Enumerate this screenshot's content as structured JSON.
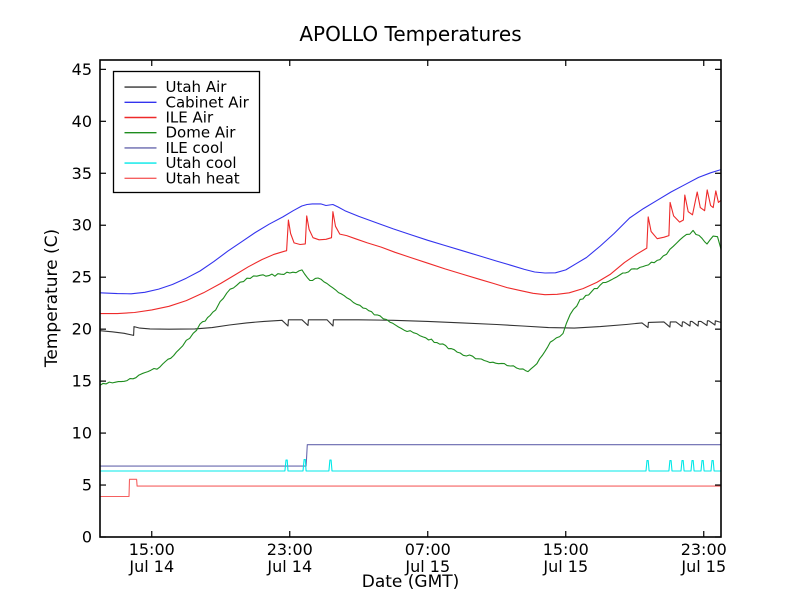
{
  "figure": {
    "title": "APOLLO Temperatures"
  },
  "chart_data": {
    "type": "line",
    "title": "APOLLO Temperatures",
    "xlabel": "Date (GMT)",
    "ylabel": "Temperature (C)",
    "xlim": [
      0,
      36
    ],
    "ylim": [
      0,
      45.9
    ],
    "x_unit": "hours (t=0 at left edge, ticks show GMT clock time)",
    "grid": false,
    "legend_position": "upper left",
    "background": "#ffffff",
    "axis_color": "#000000",
    "yticks": [
      0,
      5,
      10,
      15,
      20,
      25,
      30,
      35,
      40,
      45
    ],
    "xticks": [
      {
        "t": 3,
        "line1": "15:00",
        "line2": "Jul 14"
      },
      {
        "t": 11,
        "line1": "23:00",
        "line2": "Jul 14"
      },
      {
        "t": 19,
        "line1": "07:00",
        "line2": "Jul 15"
      },
      {
        "t": 27,
        "line1": "15:00",
        "line2": "Jul 15"
      },
      {
        "t": 35,
        "line1": "23:00",
        "line2": "Jul 15"
      }
    ],
    "series": [
      {
        "name": "Utah Air",
        "color": "#333333",
        "noisy": false,
        "points": [
          [
            0,
            19.85
          ],
          [
            0.7,
            19.75
          ],
          [
            1.4,
            19.6
          ],
          [
            1.95,
            19.4
          ],
          [
            1.97,
            20.25
          ],
          [
            2.3,
            20.1
          ],
          [
            2.9,
            20.02
          ],
          [
            4,
            20.0
          ],
          [
            5.5,
            20.02
          ],
          [
            6.5,
            20.15
          ],
          [
            7.5,
            20.4
          ],
          [
            8.5,
            20.6
          ],
          [
            9.5,
            20.75
          ],
          [
            10.55,
            20.85
          ],
          [
            10.9,
            20.3
          ],
          [
            10.92,
            20.9
          ],
          [
            11.71,
            20.9
          ],
          [
            12.06,
            20.35
          ],
          [
            12.08,
            20.9
          ],
          [
            13.16,
            20.9
          ],
          [
            13.51,
            20.3
          ],
          [
            13.53,
            20.9
          ],
          [
            15,
            20.9
          ],
          [
            17,
            20.85
          ],
          [
            19,
            20.75
          ],
          [
            21,
            20.6
          ],
          [
            23,
            20.45
          ],
          [
            24.5,
            20.3
          ],
          [
            26,
            20.15
          ],
          [
            27.5,
            20.1
          ],
          [
            29,
            20.25
          ],
          [
            30.5,
            20.45
          ],
          [
            31.42,
            20.6
          ],
          [
            31.77,
            20.15
          ],
          [
            31.79,
            20.65
          ],
          [
            32.69,
            20.7
          ],
          [
            33.04,
            20.2
          ],
          [
            33.06,
            20.7
          ],
          [
            33.39,
            20.7
          ],
          [
            33.74,
            20.25
          ],
          [
            33.76,
            20.7
          ],
          [
            33.85,
            20.7
          ],
          [
            34.2,
            20.3
          ],
          [
            34.22,
            20.75
          ],
          [
            34.32,
            20.75
          ],
          [
            34.67,
            20.3
          ],
          [
            34.69,
            20.75
          ],
          [
            34.84,
            20.75
          ],
          [
            35.19,
            20.35
          ],
          [
            35.21,
            20.8
          ],
          [
            35.3,
            20.8
          ],
          [
            35.65,
            20.4
          ],
          [
            35.67,
            20.8
          ],
          [
            36,
            20.65
          ]
        ]
      },
      {
        "name": "Cabinet Air",
        "color": "#3333ee",
        "noisy": false,
        "points": [
          [
            0,
            23.5
          ],
          [
            1,
            23.42
          ],
          [
            1.8,
            23.4
          ],
          [
            2.6,
            23.55
          ],
          [
            3.4,
            23.85
          ],
          [
            4.2,
            24.3
          ],
          [
            5,
            24.9
          ],
          [
            5.8,
            25.6
          ],
          [
            6.6,
            26.5
          ],
          [
            7.4,
            27.5
          ],
          [
            8.2,
            28.4
          ],
          [
            9,
            29.3
          ],
          [
            9.8,
            30.1
          ],
          [
            10.6,
            30.8
          ],
          [
            11.2,
            31.4
          ],
          [
            11.7,
            31.85
          ],
          [
            12,
            32.0
          ],
          [
            12.3,
            32.05
          ],
          [
            12.8,
            32.05
          ],
          [
            13.1,
            31.9
          ],
          [
            13.5,
            32.0
          ],
          [
            13.8,
            31.75
          ],
          [
            14.2,
            31.4
          ],
          [
            15,
            30.85
          ],
          [
            16,
            30.25
          ],
          [
            17,
            29.65
          ],
          [
            18,
            29.1
          ],
          [
            19,
            28.55
          ],
          [
            20,
            28.05
          ],
          [
            21,
            27.55
          ],
          [
            22,
            27.05
          ],
          [
            23,
            26.55
          ],
          [
            23.8,
            26.15
          ],
          [
            24.6,
            25.75
          ],
          [
            25.2,
            25.5
          ],
          [
            25.8,
            25.4
          ],
          [
            26.4,
            25.42
          ],
          [
            27,
            25.7
          ],
          [
            27.6,
            26.3
          ],
          [
            28.2,
            26.9
          ],
          [
            29,
            28.0
          ],
          [
            29.8,
            29.2
          ],
          [
            30.7,
            30.7
          ],
          [
            31.5,
            31.6
          ],
          [
            32.3,
            32.4
          ],
          [
            33.1,
            33.2
          ],
          [
            33.9,
            33.9
          ],
          [
            34.7,
            34.6
          ],
          [
            35.4,
            35.05
          ],
          [
            36,
            35.35
          ]
        ]
      },
      {
        "name": "ILE Air",
        "color": "#ee2a2a",
        "noisy": false,
        "points": [
          [
            0,
            21.5
          ],
          [
            1,
            21.5
          ],
          [
            2,
            21.6
          ],
          [
            3,
            21.85
          ],
          [
            4,
            22.2
          ],
          [
            5,
            22.75
          ],
          [
            6,
            23.5
          ],
          [
            7,
            24.4
          ],
          [
            7.8,
            25.2
          ],
          [
            8.6,
            26.0
          ],
          [
            9.4,
            26.7
          ],
          [
            10.1,
            27.2
          ],
          [
            10.7,
            27.5
          ],
          [
            10.82,
            27.55
          ],
          [
            10.92,
            30.5
          ],
          [
            11.05,
            29.2
          ],
          [
            11.25,
            28.3
          ],
          [
            11.6,
            28.15
          ],
          [
            11.9,
            28.2
          ],
          [
            11.98,
            30.9
          ],
          [
            12.12,
            29.6
          ],
          [
            12.35,
            28.8
          ],
          [
            12.7,
            28.6
          ],
          [
            13.1,
            28.65
          ],
          [
            13.42,
            28.8
          ],
          [
            13.5,
            31.3
          ],
          [
            13.65,
            29.9
          ],
          [
            13.9,
            29.15
          ],
          [
            14.3,
            29.0
          ],
          [
            14.8,
            28.7
          ],
          [
            15.5,
            28.3
          ],
          [
            16.3,
            27.9
          ],
          [
            17.1,
            27.4
          ],
          [
            18,
            26.9
          ],
          [
            19,
            26.35
          ],
          [
            20,
            25.8
          ],
          [
            21,
            25.3
          ],
          [
            22,
            24.8
          ],
          [
            22.8,
            24.4
          ],
          [
            23.6,
            24.0
          ],
          [
            24.4,
            23.7
          ],
          [
            25.1,
            23.45
          ],
          [
            25.8,
            23.32
          ],
          [
            26.5,
            23.35
          ],
          [
            27.2,
            23.5
          ],
          [
            28,
            23.9
          ],
          [
            28.8,
            24.5
          ],
          [
            29.6,
            25.3
          ],
          [
            30.4,
            26.4
          ],
          [
            31.1,
            27.2
          ],
          [
            31.7,
            27.8
          ],
          [
            31.78,
            30.8
          ],
          [
            31.95,
            29.4
          ],
          [
            32.3,
            28.7
          ],
          [
            32.7,
            28.85
          ],
          [
            32.98,
            29.0
          ],
          [
            33.05,
            32.2
          ],
          [
            33.25,
            30.9
          ],
          [
            33.6,
            30.3
          ],
          [
            33.82,
            30.5
          ],
          [
            33.9,
            32.9
          ],
          [
            34.1,
            31.3
          ],
          [
            34.35,
            31.0
          ],
          [
            34.62,
            33.2
          ],
          [
            34.8,
            31.7
          ],
          [
            35.05,
            31.4
          ],
          [
            35.2,
            33.4
          ],
          [
            35.4,
            31.9
          ],
          [
            35.55,
            31.7
          ],
          [
            35.7,
            33.3
          ],
          [
            35.85,
            32.2
          ],
          [
            36,
            32.4
          ]
        ]
      },
      {
        "name": "Dome Air",
        "color": "#1e8c1e",
        "noisy": true,
        "points": [
          [
            0,
            14.6
          ],
          [
            0.9,
            14.9
          ],
          [
            1.74,
            15.15
          ],
          [
            2.6,
            15.8
          ],
          [
            3.48,
            16.4
          ],
          [
            4.1,
            17.2
          ],
          [
            4.6,
            18.0
          ],
          [
            5.2,
            19.2
          ],
          [
            5.8,
            20.4
          ],
          [
            6.1,
            20.9
          ],
          [
            6.38,
            21.3
          ],
          [
            6.7,
            21.9
          ],
          [
            6.96,
            22.6
          ],
          [
            7.54,
            23.8
          ],
          [
            8.12,
            24.5
          ],
          [
            8.52,
            24.9
          ],
          [
            9.28,
            25.1
          ],
          [
            10.14,
            25.2
          ],
          [
            11.01,
            25.4
          ],
          [
            11.71,
            25.6
          ],
          [
            12.17,
            24.75
          ],
          [
            12.64,
            24.9
          ],
          [
            13.33,
            24.1
          ],
          [
            14.32,
            23.0
          ],
          [
            15.25,
            22.0
          ],
          [
            16.23,
            21.2
          ],
          [
            16.81,
            20.6
          ],
          [
            17.8,
            19.9
          ],
          [
            18.72,
            19.3
          ],
          [
            19.7,
            18.6
          ],
          [
            20.7,
            17.8
          ],
          [
            21.6,
            17.3
          ],
          [
            22.61,
            16.9
          ],
          [
            23.6,
            16.5
          ],
          [
            24.52,
            16.2
          ],
          [
            24.81,
            16.0
          ],
          [
            25.33,
            16.7
          ],
          [
            25.8,
            18.0
          ],
          [
            26.26,
            19.0
          ],
          [
            26.84,
            19.6
          ],
          [
            27.25,
            21.3
          ],
          [
            27.83,
            22.8
          ],
          [
            28.99,
            24.2
          ],
          [
            30.14,
            25.3
          ],
          [
            31.3,
            26.0
          ],
          [
            32.46,
            26.6
          ],
          [
            33.04,
            27.6
          ],
          [
            33.62,
            28.6
          ],
          [
            34.38,
            29.4
          ],
          [
            34.9,
            28.7
          ],
          [
            35.19,
            28.2
          ],
          [
            35.54,
            29.0
          ],
          [
            35.8,
            28.8
          ],
          [
            36,
            27.7
          ]
        ]
      },
      {
        "name": "ILE cool",
        "color": "#6868ae",
        "noisy": false,
        "points": [
          [
            0,
            6.82
          ],
          [
            11.95,
            6.82
          ],
          [
            12.02,
            8.88
          ],
          [
            36,
            8.88
          ]
        ]
      },
      {
        "name": "Utah cool",
        "color": "#00e8e8",
        "noisy": false,
        "points": [
          [
            0,
            6.35
          ],
          [
            10.72,
            6.35
          ],
          [
            10.78,
            7.4
          ],
          [
            10.85,
            7.4
          ],
          [
            10.9,
            6.35
          ],
          [
            11.77,
            6.35
          ],
          [
            11.83,
            7.45
          ],
          [
            11.9,
            7.45
          ],
          [
            11.95,
            6.35
          ],
          [
            13.27,
            6.35
          ],
          [
            13.33,
            7.4
          ],
          [
            13.4,
            7.4
          ],
          [
            13.45,
            6.35
          ],
          [
            31.65,
            6.35
          ],
          [
            31.71,
            7.35
          ],
          [
            31.78,
            7.35
          ],
          [
            31.83,
            6.35
          ],
          [
            32.98,
            6.35
          ],
          [
            33.04,
            7.35
          ],
          [
            33.11,
            7.35
          ],
          [
            33.16,
            6.35
          ],
          [
            33.68,
            6.35
          ],
          [
            33.74,
            7.35
          ],
          [
            33.81,
            7.35
          ],
          [
            33.86,
            6.35
          ],
          [
            34.26,
            6.35
          ],
          [
            34.32,
            7.35
          ],
          [
            34.39,
            7.35
          ],
          [
            34.44,
            6.35
          ],
          [
            34.84,
            6.35
          ],
          [
            34.9,
            7.35
          ],
          [
            34.97,
            7.35
          ],
          [
            35.02,
            6.35
          ],
          [
            35.42,
            6.35
          ],
          [
            35.48,
            7.35
          ],
          [
            35.55,
            7.35
          ],
          [
            35.6,
            6.35
          ],
          [
            36,
            6.35
          ]
        ]
      },
      {
        "name": "Utah heat",
        "color": "#f56060",
        "noisy": false,
        "points": [
          [
            0,
            3.9
          ],
          [
            1.68,
            3.9
          ],
          [
            1.71,
            5.55
          ],
          [
            2.12,
            5.55
          ],
          [
            2.15,
            4.9
          ],
          [
            36,
            4.9
          ]
        ]
      }
    ]
  }
}
